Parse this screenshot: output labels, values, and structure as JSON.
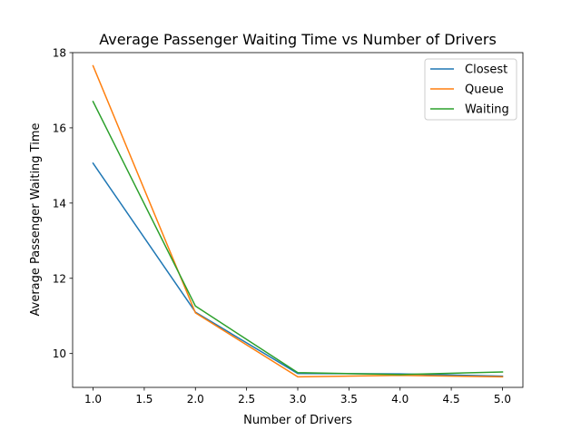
{
  "chart_data": {
    "type": "line",
    "title": "Average Passenger Waiting Time vs Number of Drivers",
    "xlabel": "Number of Drivers",
    "ylabel": "Average Passenger Waiting Time",
    "xlim": [
      0.8,
      5.2
    ],
    "ylim": [
      9.1,
      18.0
    ],
    "xticks": [
      "1.0",
      "1.5",
      "2.0",
      "2.5",
      "3.0",
      "3.5",
      "4.0",
      "4.5",
      "5.0"
    ],
    "yticks": [
      "10",
      "12",
      "14",
      "16",
      "18"
    ],
    "grid": false,
    "legend_position": "top-right",
    "x": [
      1,
      2,
      3,
      4,
      5
    ],
    "series": [
      {
        "name": "Closest",
        "color": "#1f77b4",
        "values": [
          15.06,
          11.1,
          9.47,
          9.46,
          9.4
        ]
      },
      {
        "name": "Queue",
        "color": "#ff7f0e",
        "values": [
          17.65,
          11.08,
          9.38,
          9.42,
          9.38
        ]
      },
      {
        "name": "Waiting",
        "color": "#2ca02c",
        "values": [
          16.7,
          11.26,
          9.49,
          9.44,
          9.51
        ]
      }
    ]
  }
}
